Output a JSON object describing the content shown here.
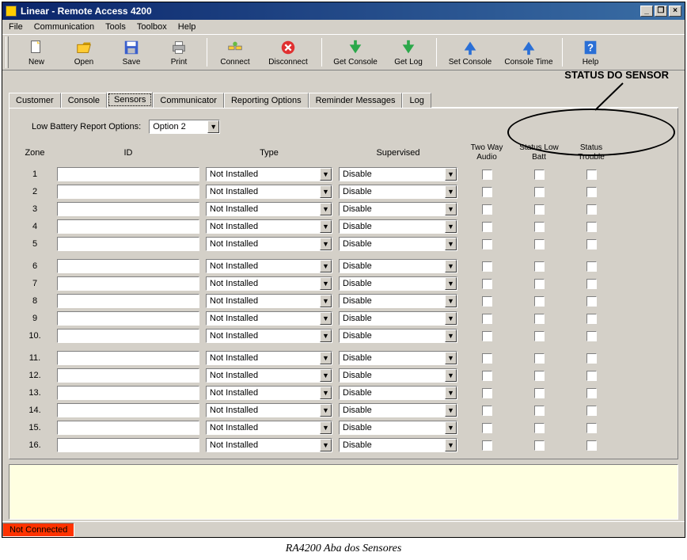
{
  "window": {
    "title": "Linear - Remote Access 4200",
    "min_icon": "_",
    "restore_icon": "❐",
    "close_icon": "×"
  },
  "menu": {
    "file": "File",
    "communication": "Communication",
    "tools": "Tools",
    "toolbox": "Toolbox",
    "help": "Help"
  },
  "toolbar": {
    "new": "New",
    "open": "Open",
    "save": "Save",
    "print": "Print",
    "connect": "Connect",
    "disconnect": "Disconnect",
    "get_console": "Get Console",
    "get_log": "Get Log",
    "set_console": "Set Console",
    "console_time": "Console Time",
    "help": "Help",
    "colors": {
      "new_sheet": "#ffffff",
      "open_folder": "#ffcc33",
      "save_disk": "#3a5fcd",
      "print": "#b0b0b0",
      "connect": "#66bb44",
      "disconnect": "#e03030",
      "down_arrow": "#2ba84a",
      "up_arrow": "#2a6fd6",
      "help": "#2a6fd6"
    }
  },
  "tabs": {
    "customer": "Customer",
    "console": "Console",
    "sensors": "Sensors",
    "communicator": "Communicator",
    "reporting": "Reporting Options",
    "reminder": "Reminder Messages",
    "log": "Log",
    "active": "sensors"
  },
  "annotation": {
    "label": "STATUS DO SENSOR"
  },
  "options": {
    "low_batt_label": "Low Battery Report Options:",
    "low_batt_value": "Option 2"
  },
  "headers": {
    "zone": "Zone",
    "id": "ID",
    "type": "Type",
    "supervised": "Supervised",
    "two_way": "Two Way Audio",
    "status_low": "Status Low Batt",
    "status_trouble": "Status Trouble"
  },
  "defaults": {
    "type": "Not Installed",
    "supervised": "Disable",
    "dropdown_arrow": "▼"
  },
  "zones": [
    {
      "n": "1",
      "group": 1
    },
    {
      "n": "2",
      "group": 1
    },
    {
      "n": "3",
      "group": 1
    },
    {
      "n": "4",
      "group": 1
    },
    {
      "n": "5",
      "group": 1
    },
    {
      "n": "6",
      "group": 2
    },
    {
      "n": "7",
      "group": 2
    },
    {
      "n": "8",
      "group": 2
    },
    {
      "n": "9",
      "group": 2
    },
    {
      "n": "10.",
      "group": 2
    },
    {
      "n": "11.",
      "group": 3
    },
    {
      "n": "12.",
      "group": 3
    },
    {
      "n": "13.",
      "group": 3
    },
    {
      "n": "14.",
      "group": 3
    },
    {
      "n": "15.",
      "group": 3
    },
    {
      "n": "16.",
      "group": 3
    }
  ],
  "status": {
    "text": "Not Connected",
    "bg": "#ff3300"
  },
  "caption": "RA4200 Aba dos Sensores"
}
